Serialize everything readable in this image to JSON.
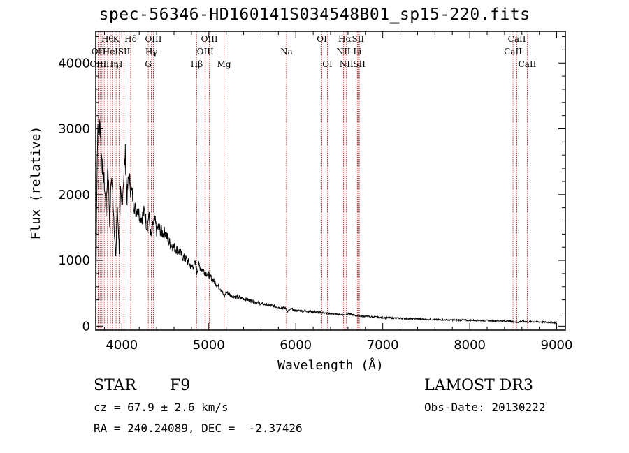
{
  "title": "spec-56346-HD160141S034548B01_sp15-220.fits",
  "info": {
    "object_class": "STAR",
    "subclass": "F9",
    "survey": "LAMOST DR3",
    "cz": "cz = 67.9 ± 2.6 km/s",
    "obs_date": "Obs-Date: 20130222",
    "coords": "RA = 240.24089, DEC =  -2.37426"
  },
  "chart_data": {
    "type": "line",
    "title": "spec-56346-HD160141S034548B01_sp15-220.fits",
    "xlabel": "Wavelength (Å)",
    "ylabel": "Flux (relative)",
    "xlim": [
      3700,
      9100
    ],
    "ylim": [
      -60,
      4480
    ],
    "xticks": [
      4000,
      5000,
      6000,
      7000,
      8000,
      9000
    ],
    "yticks": [
      0,
      1000,
      2000,
      3000,
      4000
    ],
    "line_color": "#000000",
    "marker_color": "#cc0000",
    "series": [
      {
        "name": "spectrum",
        "x": [
          3700,
          3710,
          3720,
          3735,
          3750,
          3765,
          3780,
          3800,
          3820,
          3840,
          3860,
          3880,
          3900,
          3915,
          3930,
          3945,
          3960,
          3970,
          3985,
          4000,
          4020,
          4040,
          4060,
          4080,
          4100,
          4120,
          4140,
          4160,
          4180,
          4200,
          4230,
          4260,
          4290,
          4310,
          4330,
          4340,
          4360,
          4380,
          4400,
          4420,
          4450,
          4480,
          4500,
          4530,
          4560,
          4600,
          4650,
          4700,
          4750,
          4800,
          4850,
          4861,
          4880,
          4920,
          4960,
          5000,
          5050,
          5100,
          5150,
          5175,
          5200,
          5250,
          5300,
          5400,
          5500,
          5600,
          5700,
          5800,
          5890,
          5900,
          5950,
          6000,
          6100,
          6200,
          6300,
          6400,
          6500,
          6563,
          6600,
          6700,
          6800,
          6900,
          7000,
          7200,
          7400,
          7600,
          7800,
          8000,
          8200,
          8400,
          8500,
          8542,
          8600,
          8662,
          8700,
          8800,
          8900,
          9000
        ],
        "y": [
          0,
          1800,
          2900,
          3000,
          3100,
          2600,
          2400,
          2150,
          1750,
          2500,
          1600,
          2300,
          1900,
          1450,
          1000,
          1800,
          1500,
          1150,
          2000,
          1800,
          2250,
          2600,
          1950,
          2300,
          2100,
          2000,
          1850,
          1750,
          1800,
          1700,
          1650,
          1750,
          1500,
          1700,
          1400,
          1350,
          1550,
          1600,
          1450,
          1500,
          1450,
          1400,
          1450,
          1300,
          1250,
          1200,
          1150,
          1050,
          1000,
          900,
          950,
          820,
          930,
          870,
          820,
          780,
          700,
          620,
          550,
          440,
          520,
          470,
          450,
          420,
          380,
          340,
          320,
          290,
          270,
          220,
          260,
          240,
          230,
          220,
          205,
          190,
          180,
          170,
          190,
          160,
          150,
          140,
          130,
          120,
          110,
          100,
          95,
          90,
          85,
          80,
          70,
          60,
          75,
          65,
          70,
          65,
          60,
          55
        ]
      }
    ],
    "lines": [
      {
        "wl": 3727,
        "label": "OII",
        "row": 2
      },
      {
        "wl": 3727,
        "label": "OIII",
        "row": 3
      },
      {
        "wl": 3750,
        "label": "",
        "row": 0
      },
      {
        "wl": 3771,
        "label": "",
        "row": 0
      },
      {
        "wl": 3798,
        "label": "",
        "row": 0
      },
      {
        "wl": 3835,
        "label": "Hθ",
        "row": 1
      },
      {
        "wl": 3869,
        "label": "HeI",
        "row": 2
      },
      {
        "wl": 3890,
        "label": "Hη",
        "row": 3
      },
      {
        "wl": 3934,
        "label": "K",
        "row": 1
      },
      {
        "wl": 3968,
        "label": "H",
        "row": 3
      },
      {
        "wl": 4026,
        "label": "SII",
        "row": 2
      },
      {
        "wl": 4102,
        "label": "Hδ",
        "row": 1
      },
      {
        "wl": 4304,
        "label": "G",
        "row": 3
      },
      {
        "wl": 4340,
        "label": "Hγ",
        "row": 2
      },
      {
        "wl": 4363,
        "label": "OIII",
        "row": 1
      },
      {
        "wl": 4861,
        "label": "Hβ",
        "row": 3
      },
      {
        "wl": 4959,
        "label": "OIII",
        "row": 2
      },
      {
        "wl": 5007,
        "label": "OIII",
        "row": 1
      },
      {
        "wl": 5175,
        "label": "Mg",
        "row": 3
      },
      {
        "wl": 5893,
        "label": "Na",
        "row": 2
      },
      {
        "wl": 6300,
        "label": "OI",
        "row": 1
      },
      {
        "wl": 6364,
        "label": "OI",
        "row": 3
      },
      {
        "wl": 6548,
        "label": "NII",
        "row": 2
      },
      {
        "wl": 6563,
        "label": "Hα",
        "row": 1
      },
      {
        "wl": 6583,
        "label": "NII",
        "row": 3
      },
      {
        "wl": 6708,
        "label": "Li",
        "row": 2
      },
      {
        "wl": 6716,
        "label": "SII",
        "row": 1
      },
      {
        "wl": 6731,
        "label": "SII",
        "row": 3
      },
      {
        "wl": 8498,
        "label": "CaII",
        "row": 2
      },
      {
        "wl": 8542,
        "label": "CaII",
        "row": 1
      },
      {
        "wl": 8662,
        "label": "CaII",
        "row": 3
      }
    ]
  }
}
